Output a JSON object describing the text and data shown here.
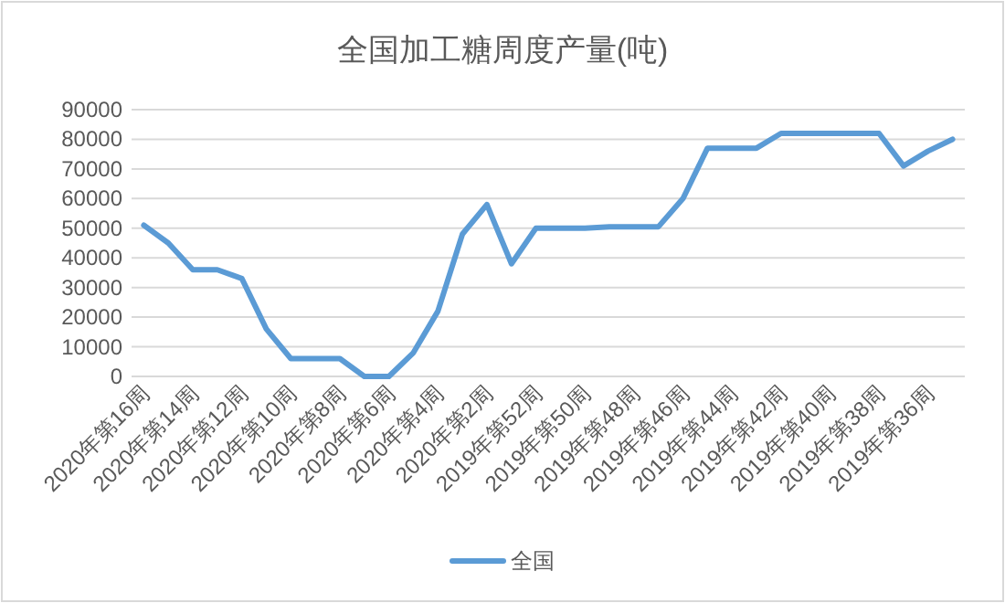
{
  "chart_data": {
    "type": "line",
    "title": "全国加工糖周度产量(吨)",
    "categories": [
      "2020年第16周",
      null,
      "2020年第14周",
      null,
      "2020年第12周",
      null,
      "2020年第10周",
      null,
      "2020年第8周",
      null,
      "2020年第6周",
      null,
      "2020年第4周",
      null,
      "2020年第2周",
      null,
      "2019年第52周",
      null,
      "2019年第50周",
      null,
      "2019年第48周",
      null,
      "2019年第46周",
      null,
      "2019年第44周",
      null,
      "2019年第42周",
      null,
      "2019年第40周",
      null,
      "2019年第38周",
      null,
      "2019年第36周",
      null
    ],
    "series": [
      {
        "name": "全国",
        "color": "#5b9bd5",
        "values": [
          51000,
          45000,
          36000,
          36000,
          33000,
          16000,
          6000,
          6000,
          6000,
          0,
          0,
          8000,
          22000,
          48000,
          58000,
          38000,
          50000,
          50000,
          50000,
          50500,
          50500,
          50500,
          60000,
          77000,
          77000,
          77000,
          82000,
          82000,
          82000,
          82000,
          82000,
          71000,
          76000,
          80000
        ]
      }
    ],
    "ylim": [
      0,
      90000
    ],
    "yticks": [
      0,
      10000,
      20000,
      30000,
      40000,
      50000,
      60000,
      70000,
      80000,
      90000
    ],
    "grid": "y",
    "legend": "bottom",
    "marker": "none",
    "line_style": "solid"
  }
}
